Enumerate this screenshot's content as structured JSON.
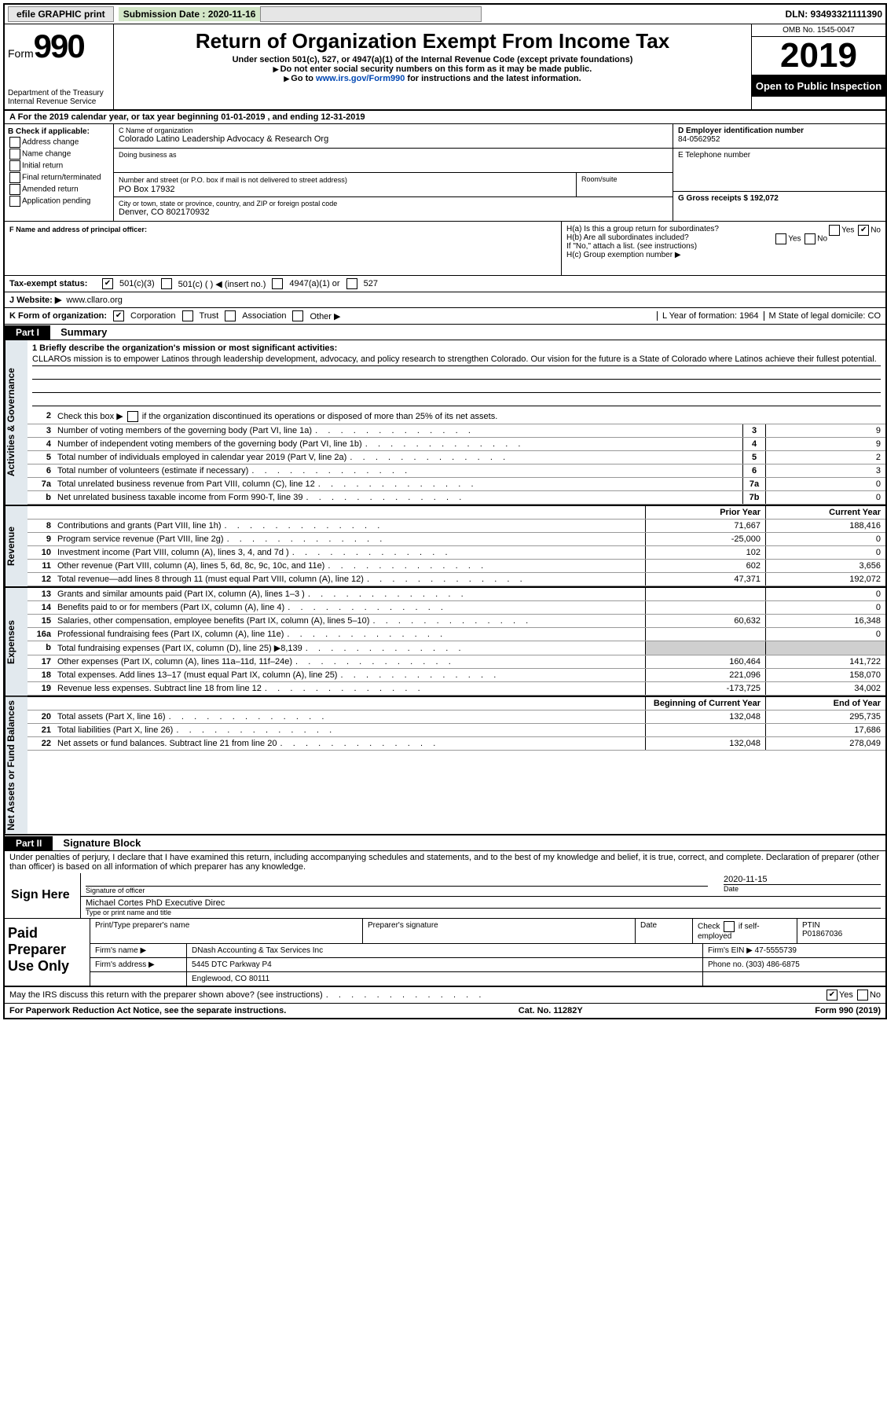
{
  "topbar": {
    "efile": "efile GRAPHIC print",
    "submission_label": "Submission Date : 2020-11-16",
    "dln": "DLN: 93493321111390"
  },
  "header": {
    "form_prefix": "Form",
    "form_number": "990",
    "dept": "Department of the Treasury",
    "irs": "Internal Revenue Service",
    "title": "Return of Organization Exempt From Income Tax",
    "subtitle": "Under section 501(c), 527, or 4947(a)(1) of the Internal Revenue Code (except private foundations)",
    "note1": "Do not enter social security numbers on this form as it may be made public.",
    "note2_prefix": "Go to ",
    "note2_link": "www.irs.gov/Form990",
    "note2_suffix": " for instructions and the latest information.",
    "omb": "OMB No. 1545-0047",
    "year": "2019",
    "inspect": "Open to Public Inspection"
  },
  "rowA": "A   For the 2019 calendar year, or tax year beginning 01-01-2019    , and ending 12-31-2019",
  "colB": {
    "label": "B Check if applicable:",
    "opts": [
      "Address change",
      "Name change",
      "Initial return",
      "Final return/terminated",
      "Amended return",
      "Application pending"
    ]
  },
  "colC": {
    "name_label": "C Name of organization",
    "name": "Colorado Latino Leadership Advocacy & Research Org",
    "dba_label": "Doing business as",
    "street_label": "Number and street (or P.O. box if mail is not delivered to street address)",
    "room_label": "Room/suite",
    "street": "PO Box 17932",
    "city_label": "City or town, state or province, country, and ZIP or foreign postal code",
    "city": "Denver, CO  802170932",
    "officer_label": "F  Name and address of principal officer:"
  },
  "colD": {
    "ein_label": "D Employer identification number",
    "ein": "84-0562952",
    "phone_label": "E Telephone number",
    "gross_label": "G Gross receipts $ 192,072"
  },
  "H": {
    "a": "H(a)  Is this a group return for subordinates?",
    "b": "H(b)  Are all subordinates included?",
    "b_note": "If \"No,\" attach a list. (see instructions)",
    "c": "H(c)  Group exemption number ▶",
    "yes": "Yes",
    "no": "No"
  },
  "I": {
    "label": "Tax-exempt status:",
    "o1": "501(c)(3)",
    "o2": "501(c) (  ) ◀ (insert no.)",
    "o3": "4947(a)(1) or",
    "o4": "527"
  },
  "J": {
    "label": "J   Website: ▶",
    "val": "www.cllaro.org"
  },
  "K": {
    "label": "K Form of organization:",
    "o1": "Corporation",
    "o2": "Trust",
    "o3": "Association",
    "o4": "Other ▶"
  },
  "L": {
    "label": "L Year of formation: 1964"
  },
  "M": {
    "label": "M State of legal domicile: CO"
  },
  "part1": {
    "bar": "Part I",
    "title": "Summary"
  },
  "mission": {
    "q": "1  Briefly describe the organization's mission or most significant activities:",
    "text": "CLLAROs mission is to empower Latinos through leadership development, advocacy, and policy research to strengthen Colorado. Our vision for the future is a State of Colorado where Latinos achieve their fullest potential."
  },
  "gov": {
    "l2": "Check this box ▶        if the organization discontinued its operations or disposed of more than 25% of its net assets.",
    "rows": [
      {
        "n": "3",
        "t": "Number of voting members of the governing body (Part VI, line 1a)",
        "b": "3",
        "v": "9"
      },
      {
        "n": "4",
        "t": "Number of independent voting members of the governing body (Part VI, line 1b)",
        "b": "4",
        "v": "9"
      },
      {
        "n": "5",
        "t": "Total number of individuals employed in calendar year 2019 (Part V, line 2a)",
        "b": "5",
        "v": "2"
      },
      {
        "n": "6",
        "t": "Total number of volunteers (estimate if necessary)",
        "b": "6",
        "v": "3"
      },
      {
        "n": "7a",
        "t": "Total unrelated business revenue from Part VIII, column (C), line 12",
        "b": "7a",
        "v": "0"
      },
      {
        "n": "b",
        "t": "Net unrelated business taxable income from Form 990-T, line 39",
        "b": "7b",
        "v": "0"
      }
    ]
  },
  "colheaders": {
    "prior": "Prior Year",
    "current": "Current Year"
  },
  "revenue": [
    {
      "n": "8",
      "t": "Contributions and grants (Part VIII, line 1h)",
      "p": "71,667",
      "c": "188,416"
    },
    {
      "n": "9",
      "t": "Program service revenue (Part VIII, line 2g)",
      "p": "-25,000",
      "c": "0"
    },
    {
      "n": "10",
      "t": "Investment income (Part VIII, column (A), lines 3, 4, and 7d )",
      "p": "102",
      "c": "0"
    },
    {
      "n": "11",
      "t": "Other revenue (Part VIII, column (A), lines 5, 6d, 8c, 9c, 10c, and 11e)",
      "p": "602",
      "c": "3,656"
    },
    {
      "n": "12",
      "t": "Total revenue—add lines 8 through 11 (must equal Part VIII, column (A), line 12)",
      "p": "47,371",
      "c": "192,072"
    }
  ],
  "expenses": [
    {
      "n": "13",
      "t": "Grants and similar amounts paid (Part IX, column (A), lines 1–3 )",
      "p": "",
      "c": "0"
    },
    {
      "n": "14",
      "t": "Benefits paid to or for members (Part IX, column (A), line 4)",
      "p": "",
      "c": "0"
    },
    {
      "n": "15",
      "t": "Salaries, other compensation, employee benefits (Part IX, column (A), lines 5–10)",
      "p": "60,632",
      "c": "16,348"
    },
    {
      "n": "16a",
      "t": "Professional fundraising fees (Part IX, column (A), line 11e)",
      "p": "",
      "c": "0"
    },
    {
      "n": "b",
      "t": "Total fundraising expenses (Part IX, column (D), line 25) ▶8,139",
      "p": "shade",
      "c": "shade"
    },
    {
      "n": "17",
      "t": "Other expenses (Part IX, column (A), lines 11a–11d, 11f–24e)",
      "p": "160,464",
      "c": "141,722"
    },
    {
      "n": "18",
      "t": "Total expenses. Add lines 13–17 (must equal Part IX, column (A), line 25)",
      "p": "221,096",
      "c": "158,070"
    },
    {
      "n": "19",
      "t": "Revenue less expenses. Subtract line 18 from line 12",
      "p": "-173,725",
      "c": "34,002"
    }
  ],
  "netheaders": {
    "begin": "Beginning of Current Year",
    "end": "End of Year"
  },
  "net": [
    {
      "n": "20",
      "t": "Total assets (Part X, line 16)",
      "p": "132,048",
      "c": "295,735"
    },
    {
      "n": "21",
      "t": "Total liabilities (Part X, line 26)",
      "p": "",
      "c": "17,686"
    },
    {
      "n": "22",
      "t": "Net assets or fund balances. Subtract line 21 from line 20",
      "p": "132,048",
      "c": "278,049"
    }
  ],
  "part2": {
    "bar": "Part II",
    "title": "Signature Block"
  },
  "sig": {
    "declaration": "Under penalties of perjury, I declare that I have examined this return, including accompanying schedules and statements, and to the best of my knowledge and belief, it is true, correct, and complete. Declaration of preparer (other than officer) is based on all information of which preparer has any knowledge.",
    "sign_here": "Sign Here",
    "sig_officer": "Signature of officer",
    "date": "Date",
    "date_val": "2020-11-15",
    "name": "Michael Cortes PhD  Executive Direc",
    "name_label": "Type or print name and title"
  },
  "paid": {
    "label": "Paid Preparer Use Only",
    "h1": "Print/Type preparer's name",
    "h2": "Preparer's signature",
    "h3": "Date",
    "h4_check": "Check        if self-employed",
    "h4_ptin": "PTIN",
    "ptin": "P01867036",
    "firm_label": "Firm's name    ▶",
    "firm": "DNash Accounting & Tax Services Inc",
    "ein_label": "Firm's EIN ▶",
    "ein": "47-5555739",
    "addr_label": "Firm's address ▶",
    "addr1": "5445 DTC Parkway P4",
    "addr2": "Englewood, CO  80111",
    "phone_label": "Phone no.",
    "phone": "(303) 486-6875"
  },
  "discuss": {
    "q": "May the IRS discuss this return with the preparer shown above? (see instructions)",
    "yes": "Yes",
    "no": "No"
  },
  "footer": {
    "l": "For Paperwork Reduction Act Notice, see the separate instructions.",
    "m": "Cat. No. 11282Y",
    "r": "Form 990 (2019)"
  },
  "sidelabels": {
    "gov": "Activities & Governance",
    "rev": "Revenue",
    "exp": "Expenses",
    "net": "Net Assets or Fund Balances"
  }
}
